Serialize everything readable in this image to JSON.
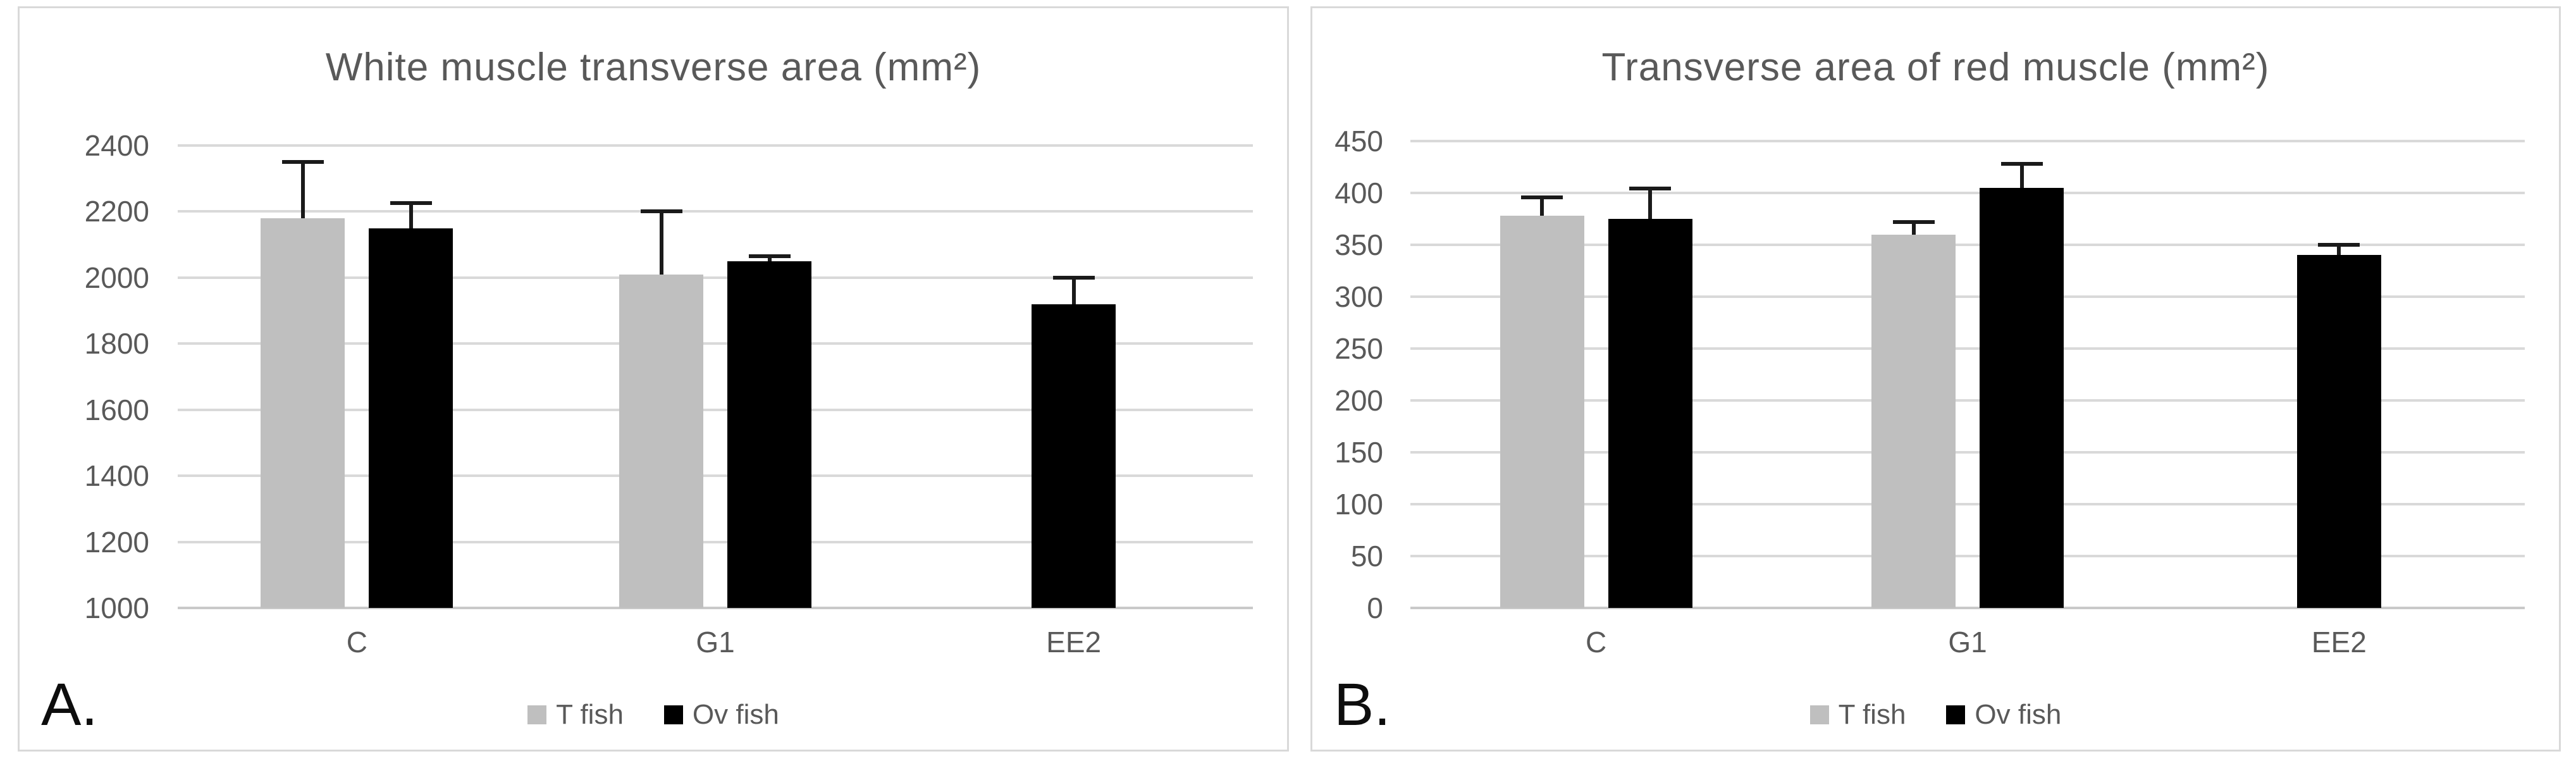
{
  "figure": {
    "background_color": "#ffffff",
    "panel_border_color": "#d9d9d9",
    "gridline_color": "#d9d9d9",
    "text_color": "#595959",
    "panel_label_color": "#0d0d0d",
    "error_bar_color": "#1a1a1a"
  },
  "chart_data": [
    {
      "type": "bar",
      "panel_label": "A.",
      "title": "White muscle transverse area (mm²)",
      "categories": [
        "C",
        "G1",
        "EE2"
      ],
      "series": [
        {
          "name": "T fish",
          "color": "#bfbfbf",
          "values": [
            2180,
            2010,
            null
          ],
          "error_top": [
            2350,
            2200,
            null
          ]
        },
        {
          "name": "Ov fish",
          "color": "#000000",
          "values": [
            2150,
            2050,
            1920
          ],
          "error_top": [
            2225,
            2065,
            2000
          ]
        }
      ],
      "ylim": [
        1000,
        2400
      ],
      "ytick_step": 200,
      "grid": true,
      "legend_position": "bottom"
    },
    {
      "type": "bar",
      "panel_label": "B.",
      "title": "Transverse area of red muscle (mm²)",
      "categories": [
        "C",
        "G1",
        "EE2"
      ],
      "series": [
        {
          "name": "T fish",
          "color": "#bfbfbf",
          "values": [
            378,
            360,
            null
          ],
          "error_top": [
            396,
            372,
            null
          ]
        },
        {
          "name": "Ov fish",
          "color": "#000000",
          "values": [
            375,
            405,
            340
          ],
          "error_top": [
            404,
            428,
            350
          ]
        }
      ],
      "ylim": [
        0,
        450
      ],
      "ytick_step": 50,
      "grid": true,
      "legend_position": "bottom"
    }
  ]
}
